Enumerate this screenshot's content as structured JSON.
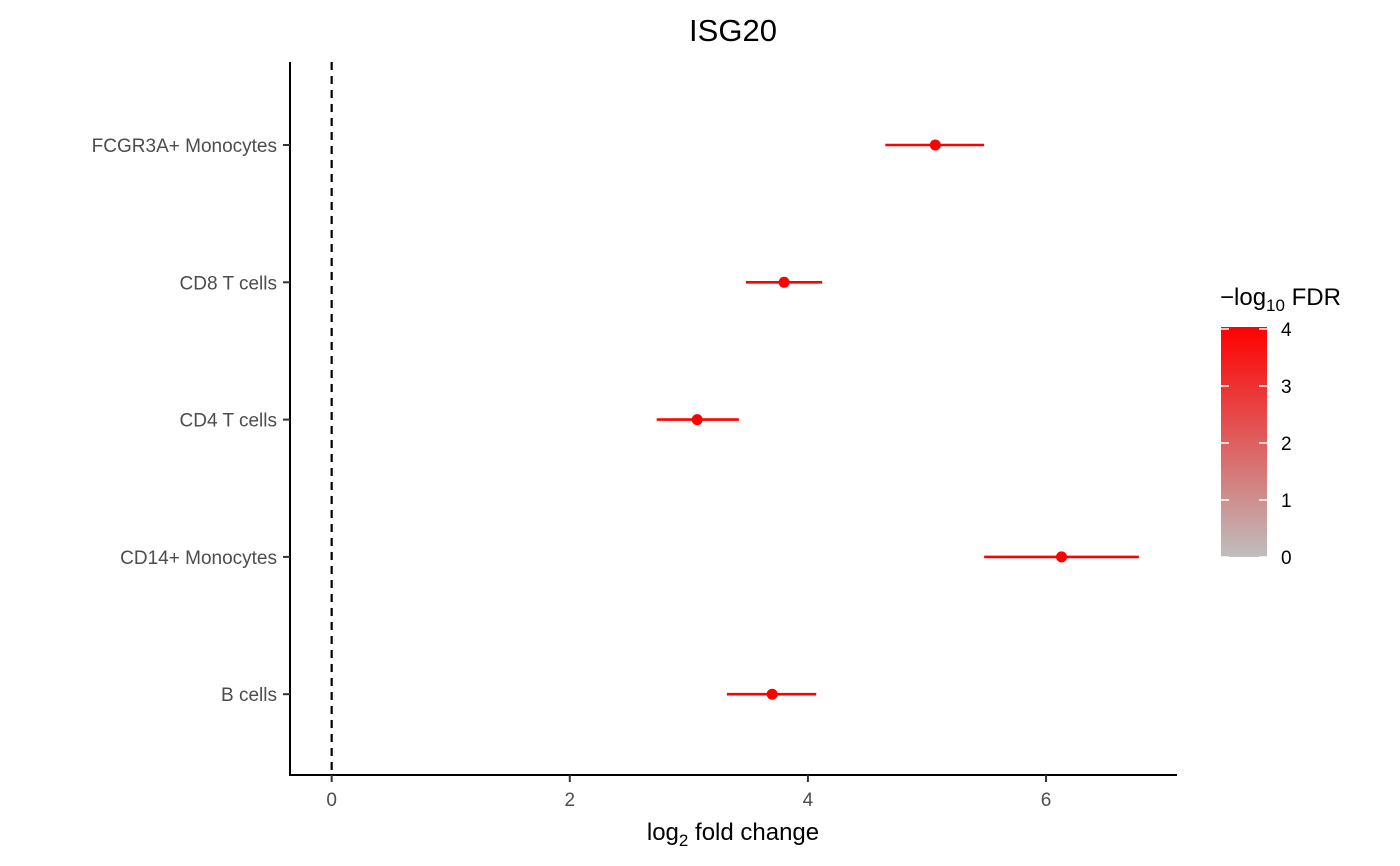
{
  "chart_data": {
    "type": "forest",
    "title": "ISG20",
    "xlabel": {
      "main": "log",
      "sub": "2",
      "rest": " fold change"
    },
    "xlim": [
      -0.35,
      7.1
    ],
    "xticks": [
      0,
      2,
      4,
      6
    ],
    "reference_line_x": 0,
    "categories": [
      "FCGR3A+ Monocytes",
      "CD8 T cells",
      "CD4 T cells",
      "CD14+ Monocytes",
      "B cells"
    ],
    "estimate": [
      5.07,
      3.8,
      3.07,
      6.13,
      3.7
    ],
    "ci_low": [
      4.65,
      3.48,
      2.73,
      5.48,
      3.32
    ],
    "ci_high": [
      5.48,
      4.12,
      3.42,
      6.78,
      4.07
    ],
    "neg_log10_fdr": [
      4,
      4,
      4,
      4,
      4
    ],
    "legend": {
      "title_prefix": "−log",
      "title_sub": "10",
      "title_suffix": " FDR",
      "ticks": [
        0,
        1,
        2,
        3,
        4
      ],
      "range": [
        0,
        4
      ],
      "color_low": "#bebebe",
      "color_high": "#ff0000",
      "placement": "right"
    }
  }
}
